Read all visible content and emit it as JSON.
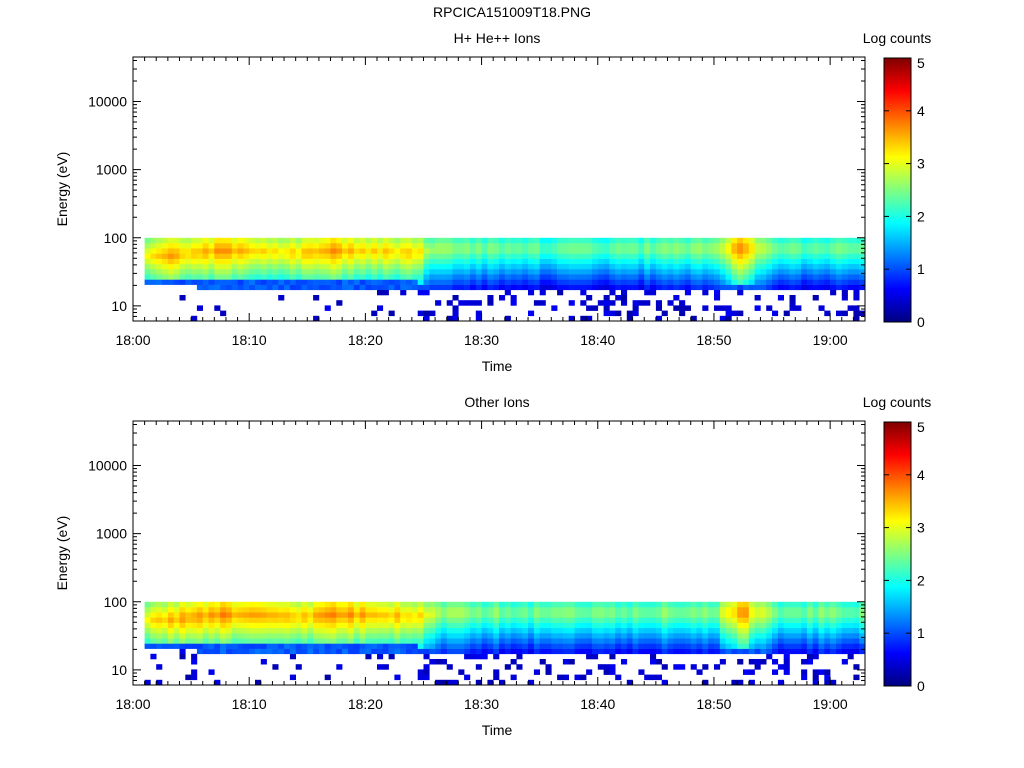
{
  "page": {
    "title": "RPCICA151009T18.PNG"
  },
  "colorscale": {
    "colors": [
      "#00007f",
      "#0000ff",
      "#0080ff",
      "#00ffff",
      "#80ff80",
      "#ffff00",
      "#ff8000",
      "#ff0000",
      "#7f0000"
    ],
    "range": [
      0,
      5
    ]
  },
  "chart_data": [
    {
      "type": "heatmap",
      "title": "H+ He++ Ions",
      "xlabel": "Time",
      "ylabel": "Energy (eV)",
      "x_ticks": [
        "18:00",
        "18:10",
        "18:20",
        "18:30",
        "18:40",
        "18:50",
        "19:00"
      ],
      "x_range_minutes": [
        0,
        63
      ],
      "y_scale": "log",
      "y_ticks": [
        "10",
        "100",
        "1000",
        "10000"
      ],
      "y_range": [
        6,
        45000
      ],
      "colorbar": {
        "label": "Log counts",
        "ticks": [
          "0",
          "1",
          "2",
          "3",
          "4",
          "5"
        ],
        "range": [
          0,
          5
        ]
      },
      "data_extent": {
        "time_start_minutes": 1,
        "time_end_minutes": 63,
        "energy_min_eV": 6,
        "energy_max_eV": 100
      },
      "profile": {
        "description_free": true,
        "time_minutes": [
          1,
          3,
          5,
          7,
          10,
          14,
          17,
          20,
          24,
          26,
          30,
          35,
          40,
          45,
          50,
          52,
          55,
          60,
          63
        ],
        "peak_log_counts": [
          3.1,
          3.5,
          3.4,
          3.6,
          3.4,
          3.3,
          3.6,
          3.4,
          3.3,
          2.6,
          2.5,
          2.4,
          2.4,
          2.5,
          2.6,
          3.8,
          2.4,
          2.5,
          2.4
        ],
        "peak_energy_eV": [
          55,
          55,
          60,
          65,
          65,
          60,
          65,
          65,
          60,
          70,
          70,
          70,
          70,
          70,
          70,
          70,
          70,
          70,
          70
        ],
        "low_energy_cutoff_eV": [
          20,
          20,
          19,
          18,
          18,
          18,
          18,
          18,
          18,
          16,
          16,
          16,
          16,
          16,
          16,
          16,
          16,
          17,
          17
        ]
      }
    },
    {
      "type": "heatmap",
      "title": "Other Ions",
      "xlabel": "Time",
      "ylabel": "Energy (eV)",
      "x_ticks": [
        "18:00",
        "18:10",
        "18:20",
        "18:30",
        "18:40",
        "18:50",
        "19:00"
      ],
      "x_range_minutes": [
        0,
        63
      ],
      "y_scale": "log",
      "y_ticks": [
        "10",
        "100",
        "1000",
        "10000"
      ],
      "y_range": [
        6,
        45000
      ],
      "colorbar": {
        "label": "Log counts",
        "ticks": [
          "0",
          "1",
          "2",
          "3",
          "4",
          "5"
        ],
        "range": [
          0,
          5
        ]
      },
      "data_extent": {
        "time_start_minutes": 1,
        "time_end_minutes": 63,
        "energy_min_eV": 6,
        "energy_max_eV": 100
      },
      "profile": {
        "time_minutes": [
          1,
          3,
          5,
          7,
          10,
          14,
          17,
          20,
          24,
          26,
          30,
          35,
          40,
          45,
          50,
          52,
          55,
          60,
          63
        ],
        "peak_log_counts": [
          3.2,
          3.6,
          3.5,
          3.7,
          3.5,
          3.4,
          3.7,
          3.5,
          3.4,
          2.7,
          2.6,
          2.5,
          2.5,
          2.6,
          2.7,
          3.8,
          2.5,
          2.6,
          2.5
        ],
        "peak_energy_eV": [
          55,
          55,
          60,
          65,
          65,
          60,
          65,
          65,
          60,
          70,
          70,
          70,
          70,
          70,
          70,
          70,
          70,
          70,
          70
        ],
        "low_energy_cutoff_eV": [
          20,
          20,
          19,
          18,
          18,
          18,
          18,
          18,
          18,
          17,
          17,
          17,
          17,
          17,
          17,
          17,
          17,
          18,
          18
        ]
      }
    }
  ]
}
